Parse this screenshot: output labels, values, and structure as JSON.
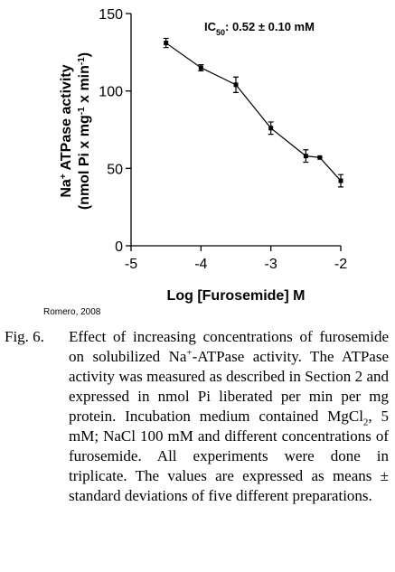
{
  "chart_data": {
    "type": "line",
    "annotation": [
      "IC",
      {
        "sub": "50"
      },
      ": 0.52 ± 0.10 mM"
    ],
    "xlabel": "Log [Furosemide] M",
    "ylabel": [
      [
        "Na",
        {
          "sup": "+"
        },
        " ATPase activity"
      ],
      [
        "(nmol Pi x mg",
        {
          "sup": "-1"
        },
        " x min",
        {
          "sup": "-1"
        },
        ")"
      ]
    ],
    "x": [
      -4.5,
      -4,
      -3.5,
      -3,
      -2.5,
      -2.3,
      -2
    ],
    "values": [
      131,
      115,
      104,
      76,
      58,
      57,
      42
    ],
    "errors": [
      3,
      2,
      5,
      4,
      4,
      0,
      4
    ],
    "color": "#000000",
    "xlim": [
      -5,
      -2
    ],
    "xticks": [
      -5,
      -4,
      -3,
      -2
    ],
    "ylim": [
      0,
      150
    ],
    "yticks": [
      0,
      50,
      100,
      150
    ]
  },
  "credit": "Romero, 2008",
  "caption": {
    "label": "Fig. 6.",
    "parts": [
      "Effect of increasing concentrations of furosemide on solubilized Na",
      {
        "sup": "+"
      },
      "-ATPase activity. The ATPase activity was measured as described in Section 2 and expressed in nmol Pi liberated per min per mg protein. Incubation medium contained MgCl",
      {
        "sub": "2"
      },
      ", 5 mM; NaCl 100 mM and different concentrations of furosemide. All experiments were done in triplicate. The values are expressed as means ± standard deviations of five different preparations."
    ]
  }
}
